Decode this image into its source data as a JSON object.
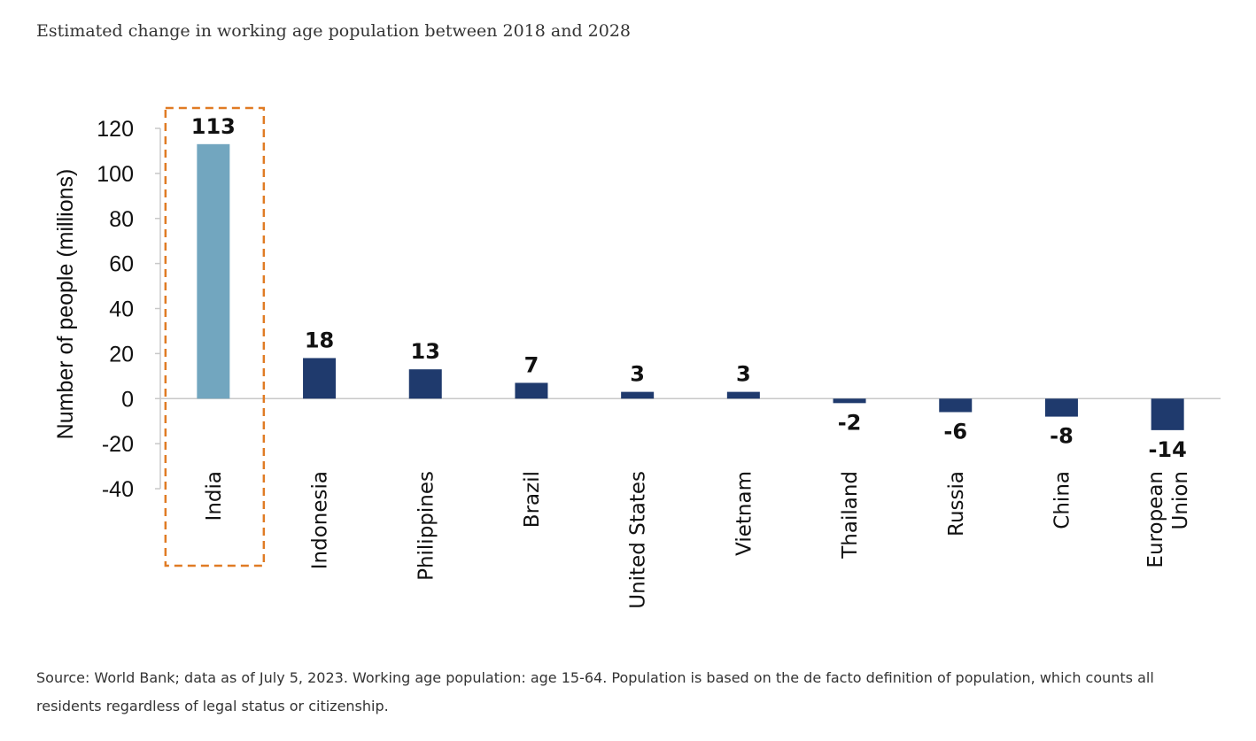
{
  "title": "Estimated change in working age population between 2018 and 2028",
  "source": "Source: World Bank; data as of July 5, 2023. Working age population: age 15-64. Population is based on the de facto definition of population, which counts all residents regardless of legal status or citizenship.",
  "chart_data": {
    "type": "bar",
    "ylabel": "Number of people (millions)",
    "ylim": [
      -40,
      120
    ],
    "yticks": [
      120,
      100,
      80,
      60,
      40,
      20,
      0,
      -20,
      -40
    ],
    "categories": [
      "India",
      "Indonesia",
      "Philippines",
      "Brazil",
      "United States",
      "Vietnam",
      "Thailand",
      "Russia",
      "China",
      "European Union"
    ],
    "values": [
      113,
      18,
      13,
      7,
      3,
      3,
      -2,
      -6,
      -8,
      -14
    ],
    "data_labels": [
      "113",
      "18",
      "13",
      "7",
      "3",
      "3",
      "-2",
      "-6",
      "-8",
      "-14"
    ],
    "highlight": "India",
    "colors": {
      "highlight_bar": "#72a6bf",
      "bar": "#1f3a6d",
      "highlight_box": "#e07b24",
      "axis": "#c8c8c8"
    }
  }
}
